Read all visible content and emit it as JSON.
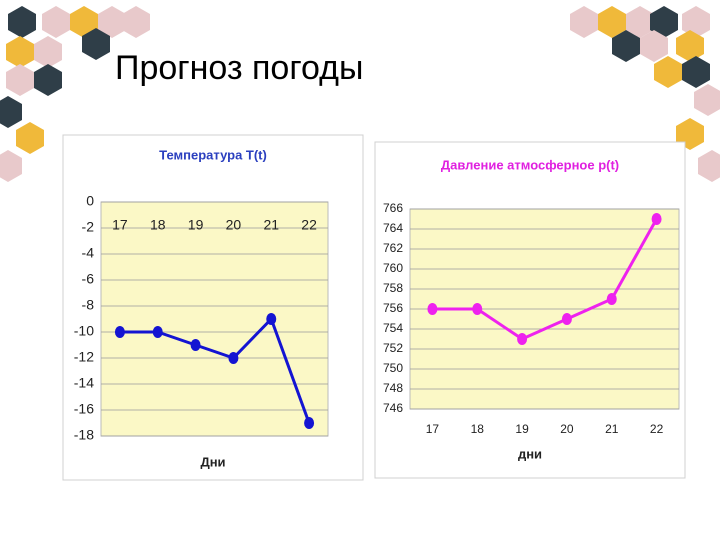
{
  "title": "Прогноз погоды",
  "chart_data": [
    {
      "type": "line",
      "title": "Температура T(t)",
      "xlabel": "Дни",
      "categories": [
        "17",
        "18",
        "19",
        "20",
        "21",
        "22"
      ],
      "series": [
        {
          "color": "#1414d2",
          "values": [
            -10,
            -10,
            -11,
            -12,
            -9,
            -17
          ]
        }
      ],
      "ylim": [
        -18,
        0
      ],
      "yticks": [
        0,
        -2,
        -4,
        -6,
        -8,
        -10,
        -12,
        -14,
        -16,
        -18
      ],
      "grid": true,
      "title_color": "#2a3fbf",
      "plot_color": "#fbf8c6"
    },
    {
      "type": "line",
      "title": "Давление атмосферное   p(t)",
      "xlabel": "дни",
      "categories": [
        "17",
        "18",
        "19",
        "20",
        "21",
        "22"
      ],
      "series": [
        {
          "color": "#ee22ee",
          "values": [
            756,
            756,
            753,
            755,
            757,
            765
          ]
        }
      ],
      "ylim": [
        746,
        766
      ],
      "yticks": [
        746,
        748,
        750,
        752,
        754,
        756,
        758,
        760,
        762,
        764,
        766
      ],
      "grid": true,
      "title_color": "#e020e0",
      "plot_color": "#fbf8c6"
    }
  ]
}
